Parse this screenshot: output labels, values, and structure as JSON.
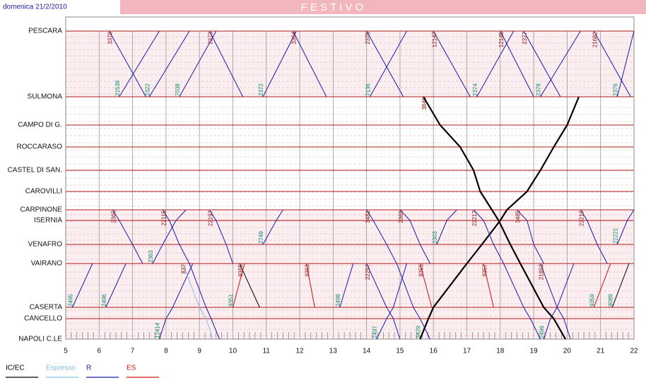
{
  "header": {
    "date": "domenica 21/2/2010",
    "title": "F E S T I V O"
  },
  "stations": [
    "PESCARA",
    "SULMONA",
    "CAMPO DI G.",
    "ROCCARASO",
    "CASTEL DI SAN.",
    "CAROVILLI",
    "CARPINONE",
    "ISERNIA",
    "VENAFRO",
    "VAIRANO",
    "CASERTA",
    "CANCELLO",
    "NAPOLI C.LE"
  ],
  "hours": [
    5,
    6,
    7,
    8,
    9,
    10,
    11,
    12,
    13,
    14,
    15,
    16,
    17,
    18,
    19,
    20,
    21,
    22
  ],
  "legend": [
    {
      "name": "IC/EC",
      "color": "#000000"
    },
    {
      "name": "Espresso",
      "color": "#87bfe8"
    },
    {
      "name": "R",
      "color": "#1a1aa8"
    },
    {
      "name": "ES",
      "color": "#cc1111"
    }
  ],
  "trains": [
    {
      "number": "3379",
      "kind": "R",
      "times": [
        6.3,
        7.4,
        null,
        null,
        null,
        null,
        null,
        null,
        null,
        null,
        null,
        null,
        null
      ]
    },
    {
      "number": "2373",
      "kind": "R",
      "times": [
        9.3,
        10.3,
        null,
        null,
        null,
        null,
        null,
        null,
        null,
        null,
        null,
        null,
        null
      ]
    },
    {
      "number": "3304",
      "kind": "R",
      "times": [
        11.8,
        12.8,
        null,
        null,
        null,
        null,
        null,
        null,
        null,
        null,
        null,
        null,
        null
      ]
    },
    {
      "number": "2375",
      "kind": "R",
      "times": [
        14.0,
        15.1,
        null,
        null,
        null,
        null,
        null,
        null,
        null,
        null,
        null,
        null,
        null
      ]
    },
    {
      "number": "12147",
      "kind": "R",
      "times": [
        16.0,
        17.1,
        null,
        null,
        null,
        null,
        null,
        null,
        null,
        null,
        null,
        null,
        null
      ]
    },
    {
      "number": "12145",
      "kind": "R",
      "times": [
        18.0,
        19.0,
        null,
        null,
        null,
        null,
        null,
        null,
        null,
        null,
        null,
        null,
        null
      ]
    },
    {
      "number": "2377",
      "kind": "R",
      "times": [
        18.7,
        19.8,
        null,
        null,
        null,
        null,
        null,
        null,
        null,
        null,
        null,
        null,
        null
      ]
    },
    {
      "number": "21682",
      "kind": "R",
      "times": [
        20.8,
        21.9,
        null,
        null,
        null,
        null,
        null,
        null,
        null,
        null,
        null,
        null,
        null
      ]
    },
    {
      "number": "21538",
      "kind": "R",
      "times": [
        7.8,
        6.6,
        null,
        null,
        null,
        null,
        null,
        null,
        null,
        null,
        null,
        null,
        null
      ]
    },
    {
      "number": "2322",
      "kind": "R",
      "times": [
        8.7,
        7.5,
        null,
        null,
        null,
        null,
        null,
        null,
        null,
        null,
        null,
        null,
        null
      ]
    },
    {
      "number": "7038",
      "kind": "R",
      "times": [
        9.5,
        8.4,
        null,
        null,
        null,
        null,
        null,
        null,
        null,
        null,
        null,
        null,
        null
      ]
    },
    {
      "number": "2372",
      "kind": "R",
      "times": [
        11.9,
        10.9,
        null,
        null,
        null,
        null,
        null,
        null,
        null,
        null,
        null,
        null,
        null
      ]
    },
    {
      "number": "7136",
      "kind": "R",
      "times": [
        15.2,
        14.1,
        null,
        null,
        null,
        null,
        null,
        null,
        null,
        null,
        null,
        null,
        null
      ]
    },
    {
      "number": "2374",
      "kind": "R",
      "times": [
        18.4,
        17.3,
        null,
        null,
        null,
        null,
        null,
        null,
        null,
        null,
        null,
        null,
        null
      ]
    },
    {
      "number": "2378",
      "kind": "R",
      "times": [
        20.4,
        19.2,
        null,
        null,
        null,
        null,
        null,
        null,
        null,
        null,
        null,
        null,
        null
      ]
    },
    {
      "number": "2376",
      "kind": "R",
      "times": [
        22.0,
        21.5,
        null,
        null,
        null,
        null,
        null,
        null,
        null,
        null,
        null,
        null,
        null
      ]
    },
    {
      "number": "3846",
      "kind": "IC/EC",
      "times": [
        null,
        15.7,
        16.2,
        16.8,
        17.2,
        17.4,
        17.75,
        17.95,
        18.3,
        18.6,
        19.3,
        19.6,
        19.95
      ]
    },
    {
      "number": "3429",
      "kind": "IC/EC",
      "times": [
        null,
        20.35,
        20.0,
        19.6,
        19.2,
        18.8,
        18.2,
        18.0,
        17.45,
        17.0,
        16.0,
        15.85,
        15.6
      ]
    },
    {
      "number": "2365",
      "kind": "R",
      "times": [
        null,
        null,
        null,
        null,
        null,
        null,
        6.4,
        6.6,
        7.0,
        7.3,
        null,
        null,
        null
      ]
    },
    {
      "number": "22115",
      "kind": "R",
      "times": [
        null,
        null,
        null,
        null,
        null,
        null,
        7.9,
        8.1,
        8.4,
        8.7,
        9.2,
        9.35,
        9.6
      ]
    },
    {
      "number": "22197",
      "kind": "R",
      "times": [
        null,
        null,
        null,
        null,
        null,
        null,
        9.3,
        9.5,
        9.8,
        10.0,
        null,
        null,
        null
      ]
    },
    {
      "number": "3481",
      "kind": "R",
      "times": [
        null,
        null,
        null,
        null,
        null,
        null,
        14.0,
        14.2,
        14.6,
        14.9,
        15.4,
        15.6,
        15.9
      ]
    },
    {
      "number": "2369",
      "kind": "R",
      "times": [
        null,
        null,
        null,
        null,
        null,
        null,
        15.0,
        15.3,
        15.6,
        15.9,
        null,
        null,
        null
      ]
    },
    {
      "number": "22217",
      "kind": "R",
      "times": [
        null,
        null,
        null,
        null,
        null,
        null,
        17.2,
        17.5,
        17.8,
        18.1,
        18.7,
        18.9,
        19.2
      ]
    },
    {
      "number": "3485",
      "kind": "R",
      "times": [
        null,
        null,
        null,
        null,
        null,
        null,
        18.5,
        18.8,
        19.0,
        19.3,
        null,
        null,
        null
      ]
    },
    {
      "number": "22219",
      "kind": "R",
      "times": [
        null,
        null,
        null,
        null,
        null,
        null,
        20.4,
        20.6,
        20.9,
        21.2,
        null,
        null,
        null
      ]
    },
    {
      "number": "2363",
      "kind": "R",
      "times": [
        null,
        null,
        null,
        null,
        null,
        null,
        8.6,
        8.3,
        7.9,
        7.6,
        null,
        null,
        null
      ]
    },
    {
      "number": "2749",
      "kind": "R",
      "times": [
        null,
        null,
        null,
        null,
        null,
        null,
        11.5,
        11.3,
        10.9,
        null,
        null,
        null,
        null
      ]
    },
    {
      "number": "2303",
      "kind": "R",
      "times": [
        null,
        null,
        null,
        null,
        null,
        null,
        16.7,
        16.4,
        16.1,
        null,
        null,
        null,
        null
      ]
    },
    {
      "number": "22221",
      "kind": "R",
      "times": [
        null,
        null,
        null,
        null,
        null,
        null,
        22.0,
        21.8,
        21.5,
        null,
        null,
        null,
        null
      ]
    },
    {
      "number": "22257",
      "kind": "R",
      "times": [
        null,
        null,
        null,
        null,
        null,
        null,
        null,
        null,
        null,
        14.0,
        14.6,
        14.8,
        15.0
      ]
    },
    {
      "number": "2497",
      "kind": "R",
      "times": [
        null,
        null,
        null,
        null,
        null,
        null,
        null,
        null,
        null,
        15.2,
        14.8,
        14.6,
        14.3
      ]
    },
    {
      "number": "2495",
      "kind": "R",
      "times": [
        null,
        null,
        null,
        null,
        null,
        null,
        null,
        null,
        null,
        5.8,
        5.2,
        null,
        null
      ]
    },
    {
      "number": "2496",
      "kind": "R",
      "times": [
        null,
        null,
        null,
        null,
        null,
        null,
        null,
        null,
        null,
        6.8,
        6.2,
        null,
        null
      ]
    },
    {
      "number": "2498",
      "kind": "R",
      "times": [
        null,
        null,
        null,
        null,
        null,
        null,
        null,
        null,
        null,
        13.6,
        13.2,
        null,
        null
      ]
    },
    {
      "number": "12414",
      "kind": "R",
      "times": [
        null,
        null,
        null,
        null,
        null,
        null,
        null,
        null,
        null,
        8.8,
        8.2,
        8.0,
        7.8
      ]
    },
    {
      "number": "21853",
      "kind": "R",
      "times": [
        null,
        null,
        null,
        null,
        null,
        null,
        null,
        null,
        null,
        19.2,
        19.7,
        19.9,
        20.1
      ]
    },
    {
      "number": "2499",
      "kind": "R",
      "times": [
        null,
        null,
        null,
        null,
        null,
        null,
        null,
        null,
        null,
        20.2,
        19.7,
        19.5,
        19.3
      ]
    },
    {
      "number": "837",
      "kind": "Espresso",
      "times": [
        null,
        null,
        null,
        null,
        null,
        null,
        null,
        null,
        null,
        8.5,
        9.0,
        9.2,
        9.4
      ]
    },
    {
      "number": "9365",
      "kind": "IC/EC",
      "times": [
        null,
        null,
        null,
        null,
        null,
        null,
        null,
        null,
        null,
        10.2,
        10.8,
        null,
        null
      ]
    },
    {
      "number": "9089",
      "kind": "IC/EC",
      "times": [
        null,
        null,
        null,
        null,
        null,
        null,
        null,
        null,
        null,
        21.85,
        21.35,
        null,
        null
      ]
    },
    {
      "number": "9351",
      "kind": "ES",
      "times": [
        null,
        null,
        null,
        null,
        null,
        null,
        null,
        null,
        null,
        10.35,
        10.0,
        null,
        null
      ]
    },
    {
      "number": "9353",
      "kind": "ES",
      "times": [
        null,
        null,
        null,
        null,
        null,
        null,
        null,
        null,
        null,
        12.2,
        12.45,
        null,
        null
      ]
    },
    {
      "number": "9355",
      "kind": "ES",
      "times": [
        null,
        null,
        null,
        null,
        null,
        null,
        null,
        null,
        null,
        15.6,
        15.95,
        null,
        null
      ]
    },
    {
      "number": "9357",
      "kind": "ES",
      "times": [
        null,
        null,
        null,
        null,
        null,
        null,
        null,
        null,
        null,
        17.5,
        17.8,
        null,
        null
      ]
    },
    {
      "number": "9359",
      "kind": "ES",
      "times": [
        null,
        null,
        null,
        null,
        null,
        null,
        null,
        null,
        null,
        21.3,
        20.8,
        null,
        null
      ]
    }
  ]
}
